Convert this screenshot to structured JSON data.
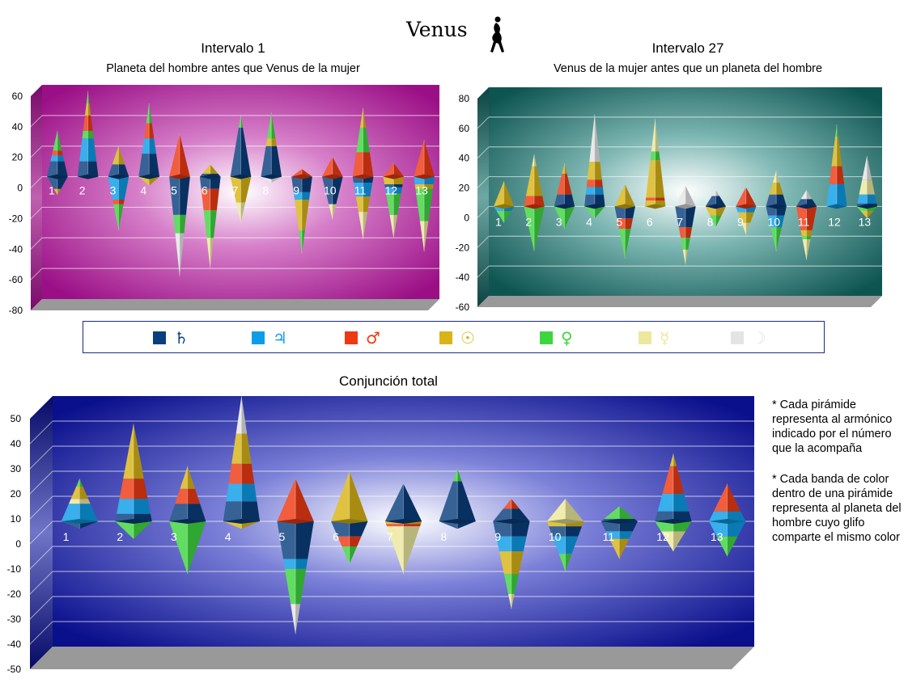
{
  "page": {
    "title": "Venus",
    "title_icon": "female-silhouette-icon"
  },
  "planets": [
    {
      "key": "saturn",
      "glyph": "♄",
      "color": "#0a3f7e"
    },
    {
      "key": "jupiter",
      "glyph": "♃",
      "color": "#0d9de8"
    },
    {
      "key": "mars",
      "glyph": "♂",
      "color": "#ee3a12"
    },
    {
      "key": "sun",
      "glyph": "☉",
      "color": "#d8b416"
    },
    {
      "key": "venus",
      "glyph": "♀",
      "color": "#3ed63e"
    },
    {
      "key": "mercury",
      "glyph": "☿",
      "color": "#ece89c"
    },
    {
      "key": "moon",
      "glyph": "☽",
      "color": "#e4e4e4"
    }
  ],
  "chart_data": [
    {
      "id": "intervalo1",
      "type": "pyramid-bar",
      "title": "Intervalo 1",
      "subtitle": "Planeta del hombre antes que Venus de la mujer",
      "ylim": [
        -80,
        60
      ],
      "yticks": [
        60,
        40,
        20,
        0,
        -20,
        -40,
        -60,
        -80
      ],
      "categories": [
        "1",
        "2",
        "3",
        "4",
        "5",
        "6",
        "7",
        "8",
        "9",
        "10",
        "11",
        "12",
        "13"
      ],
      "bg": "magenta",
      "stacks": [
        {
          "up": [
            [
              "saturn",
              10
            ],
            [
              "jupiter",
              4
            ],
            [
              "mars",
              3
            ],
            [
              "venus",
              13
            ]
          ],
          "down": [
            [
              "saturn",
              8
            ],
            [
              "sun",
              4
            ]
          ]
        },
        {
          "up": [
            [
              "saturn",
              10
            ],
            [
              "jupiter",
              15
            ],
            [
              "venus",
              5
            ],
            [
              "mars",
              10
            ],
            [
              "sun",
              8
            ],
            [
              "venus",
              8
            ]
          ],
          "down": []
        },
        {
          "up": [
            [
              "saturn",
              8
            ],
            [
              "sun",
              12
            ]
          ],
          "down": [
            [
              "jupiter",
              15
            ],
            [
              "mars",
              3
            ],
            [
              "venus",
              17
            ]
          ]
        },
        {
          "up": [
            [
              "saturn",
              15
            ],
            [
              "jupiter",
              10
            ],
            [
              "mars",
              10
            ],
            [
              "venus",
              13
            ]
          ],
          "down": [
            [
              "sun",
              6
            ]
          ]
        },
        {
          "up": [
            [
              "mars",
              28
            ]
          ],
          "down": [
            [
              "saturn",
              25
            ],
            [
              "venus",
              12
            ],
            [
              "moon",
              28
            ]
          ]
        },
        {
          "up": [
            [
              "saturn",
              2
            ],
            [
              "sun",
              6
            ]
          ],
          "down": [
            [
              "saturn",
              8
            ],
            [
              "mars",
              14
            ],
            [
              "venus",
              18
            ],
            [
              "mercury",
              20
            ]
          ]
        },
        {
          "up": [
            [
              "saturn",
              32
            ],
            [
              "venus",
              8
            ]
          ],
          "down": [
            [
              "sun",
              17
            ],
            [
              "mercury",
              13
            ]
          ]
        },
        {
          "up": [
            [
              "saturn",
              20
            ],
            [
              "sun",
              5
            ],
            [
              "venus",
              17
            ]
          ],
          "down": [
            [
              "moon",
              4
            ]
          ]
        },
        {
          "up": [
            [
              "mars",
              5
            ]
          ],
          "down": [
            [
              "saturn",
              10
            ],
            [
              "jupiter",
              5
            ],
            [
              "sun",
              20
            ],
            [
              "venus",
              15
            ]
          ]
        },
        {
          "up": [
            [
              "mars",
              13
            ]
          ],
          "down": [
            [
              "saturn",
              18
            ],
            [
              "mercury",
              10
            ]
          ]
        },
        {
          "up": [
            [
              "mars",
              16
            ],
            [
              "venus",
              16
            ],
            [
              "sun",
              13
            ]
          ],
          "down": [
            [
              "saturn",
              4
            ],
            [
              "jupiter",
              9
            ],
            [
              "sun",
              10
            ],
            [
              "mercury",
              18
            ]
          ]
        },
        {
          "up": [
            [
              "mars",
              9
            ]
          ],
          "down": [
            [
              "sun",
              5
            ],
            [
              "saturn",
              2
            ],
            [
              "jupiter",
              4
            ],
            [
              "venus",
              14
            ],
            [
              "mercury",
              15
            ]
          ]
        },
        {
          "up": [
            [
              "mars",
              24
            ]
          ],
          "down": [
            [
              "jupiter",
              5
            ],
            [
              "sun",
              3
            ],
            [
              "venus",
              21
            ],
            [
              "mercury",
              20
            ]
          ]
        }
      ]
    },
    {
      "id": "intervalo27",
      "type": "pyramid-bar",
      "title": "Intervalo 27",
      "subtitle": "Venus de la mujer antes que un planeta del hombre",
      "ylim": [
        -60,
        80
      ],
      "yticks": [
        80,
        60,
        40,
        20,
        0,
        -20,
        -40,
        -60
      ],
      "categories": [
        "1",
        "2",
        "3",
        "4",
        "5",
        "6",
        "7",
        "8",
        "9",
        "10",
        "11",
        "12",
        "13"
      ],
      "bg": "teal",
      "stacks": [
        {
          "up": [
            [
              "sun",
              17
            ]
          ],
          "down": [
            [
              "jupiter",
              3
            ],
            [
              "venus",
              8
            ]
          ]
        },
        {
          "up": [
            [
              "mars",
              7
            ],
            [
              "sun",
              20
            ],
            [
              "mercury",
              8
            ]
          ],
          "down": [
            [
              "venus",
              30
            ]
          ]
        },
        {
          "up": [
            [
              "saturn",
              8
            ],
            [
              "mars",
              14
            ],
            [
              "sun",
              7
            ]
          ],
          "down": [
            [
              "venus",
              15
            ]
          ]
        },
        {
          "up": [
            [
              "saturn",
              8
            ],
            [
              "jupiter",
              5
            ],
            [
              "mars",
              5
            ],
            [
              "sun",
              12
            ],
            [
              "moon",
              32
            ]
          ],
          "down": [
            [
              "venus",
              8
            ]
          ]
        },
        {
          "up": [
            [
              "sun",
              15
            ]
          ],
          "down": [
            [
              "saturn",
              8
            ],
            [
              "mars",
              7
            ],
            [
              "venus",
              20
            ]
          ]
        },
        {
          "up": [
            [
              "sun",
              4
            ],
            [
              "mars",
              2
            ],
            [
              "sun",
              25
            ],
            [
              "venus",
              6
            ],
            [
              "mercury",
              22
            ]
          ],
          "down": []
        },
        {
          "up": [
            [
              "moon",
              14
            ]
          ],
          "down": [
            [
              "saturn",
              14
            ],
            [
              "mars",
              7
            ],
            [
              "venus",
              8
            ],
            [
              "mercury",
              10
            ]
          ]
        },
        {
          "up": [
            [
              "saturn",
              7
            ],
            [
              "moon",
              4
            ]
          ],
          "down": [
            [
              "sun",
              6
            ],
            [
              "venus",
              8
            ]
          ]
        },
        {
          "up": [
            [
              "mars",
              13
            ]
          ],
          "down": [
            [
              "jupiter",
              4
            ],
            [
              "sun",
              7
            ],
            [
              "mercury",
              8
            ]
          ]
        },
        {
          "up": [
            [
              "saturn",
              8
            ],
            [
              "sun",
              8
            ],
            [
              "mercury",
              8
            ]
          ],
          "down": [
            [
              "saturn",
              6
            ],
            [
              "jupiter",
              8
            ],
            [
              "venus",
              16
            ]
          ]
        },
        {
          "up": [
            [
              "saturn",
              5
            ],
            [
              "moon",
              6
            ]
          ],
          "down": [
            [
              "mars",
              16
            ],
            [
              "sun",
              4
            ],
            [
              "venus",
              2
            ],
            [
              "mercury",
              14
            ]
          ]
        },
        {
          "up": [
            [
              "jupiter",
              15
            ],
            [
              "mars",
              12
            ],
            [
              "sun",
              20
            ],
            [
              "venus",
              8
            ]
          ],
          "down": []
        },
        {
          "up": [
            [
              "saturn",
              2
            ],
            [
              "jupiter",
              6
            ],
            [
              "mercury",
              10
            ],
            [
              "moon",
              16
            ]
          ],
          "down": [
            [
              "venus",
              3
            ],
            [
              "sun",
              5
            ]
          ]
        }
      ]
    },
    {
      "id": "conjuncion",
      "type": "pyramid-bar",
      "title": "Conjunción total",
      "subtitle": "",
      "ylim": [
        -50,
        50
      ],
      "yticks": [
        50,
        40,
        30,
        20,
        10,
        0,
        -10,
        -20,
        -30,
        -40,
        -50
      ],
      "categories": [
        "1",
        "2",
        "3",
        "4",
        "5",
        "6",
        "7",
        "8",
        "9",
        "10",
        "11",
        "12",
        "13"
      ],
      "bg": "navy",
      "stacks": [
        {
          "up": [
            [
              "jupiter",
              7
            ],
            [
              "mercury",
              2
            ],
            [
              "sun",
              5
            ],
            [
              "venus",
              3
            ]
          ],
          "down": [
            [
              "saturn",
              3
            ]
          ]
        },
        {
          "up": [
            [
              "saturn",
              3
            ],
            [
              "jupiter",
              6
            ],
            [
              "mars",
              8
            ],
            [
              "sun",
              22
            ]
          ],
          "down": [
            [
              "venus",
              7
            ]
          ]
        },
        {
          "up": [
            [
              "saturn",
              7
            ],
            [
              "mars",
              6
            ],
            [
              "sun",
              9
            ]
          ],
          "down": [
            [
              "venus",
              21
            ]
          ]
        },
        {
          "up": [
            [
              "saturn",
              8
            ],
            [
              "jupiter",
              7
            ],
            [
              "mars",
              8
            ],
            [
              "sun",
              12
            ],
            [
              "moon",
              15
            ]
          ],
          "down": [
            [
              "sun",
              3
            ]
          ]
        },
        {
          "up": [
            [
              "mars",
              17
            ]
          ],
          "down": [
            [
              "saturn",
              15
            ],
            [
              "jupiter",
              4
            ],
            [
              "venus",
              14
            ],
            [
              "moon",
              12
            ]
          ]
        },
        {
          "up": [
            [
              "sun",
              20
            ]
          ],
          "down": [
            [
              "saturn",
              6
            ],
            [
              "mars",
              4
            ],
            [
              "venus",
              7
            ]
          ]
        },
        {
          "up": [
            [
              "saturn",
              15
            ]
          ],
          "down": [
            [
              "sun",
              1
            ],
            [
              "mars",
              1
            ],
            [
              "mercury",
              19
            ]
          ]
        },
        {
          "up": [
            [
              "saturn",
              16
            ],
            [
              "venus",
              5
            ]
          ],
          "down": [
            [
              "saturn",
              3
            ]
          ]
        },
        {
          "up": [
            [
              "saturn",
              5
            ],
            [
              "mars",
              4
            ]
          ],
          "down": [
            [
              "saturn",
              6
            ],
            [
              "jupiter",
              6
            ],
            [
              "sun",
              9
            ],
            [
              "venus",
              8
            ],
            [
              "mercury",
              6
            ]
          ]
        },
        {
          "up": [
            [
              "mercury",
              9
            ]
          ],
          "down": [
            [
              "sun",
              2
            ],
            [
              "saturn",
              4
            ],
            [
              "jupiter",
              7
            ],
            [
              "venus",
              7
            ]
          ]
        },
        {
          "up": [
            [
              "saturn",
              1
            ],
            [
              "venus",
              5
            ]
          ],
          "down": [
            [
              "saturn",
              4
            ],
            [
              "jupiter",
              3
            ],
            [
              "sun",
              8
            ]
          ]
        },
        {
          "up": [
            [
              "saturn",
              4
            ],
            [
              "jupiter",
              7
            ],
            [
              "mars",
              11
            ],
            [
              "sun",
              5
            ]
          ],
          "down": [
            [
              "venus",
              4
            ],
            [
              "mercury",
              8
            ]
          ]
        },
        {
          "up": [
            [
              "jupiter",
              4
            ],
            [
              "mars",
              11
            ]
          ],
          "down": [
            [
              "jupiter",
              6
            ],
            [
              "venus",
              8
            ]
          ]
        }
      ]
    }
  ],
  "notes": [
    "* Cada pirámide representa al armónico indicado por el número que la acompaña",
    "* Cada banda de color dentro de una pirámide representa al planeta del hombre cuyo glifo comparte el mismo color"
  ]
}
